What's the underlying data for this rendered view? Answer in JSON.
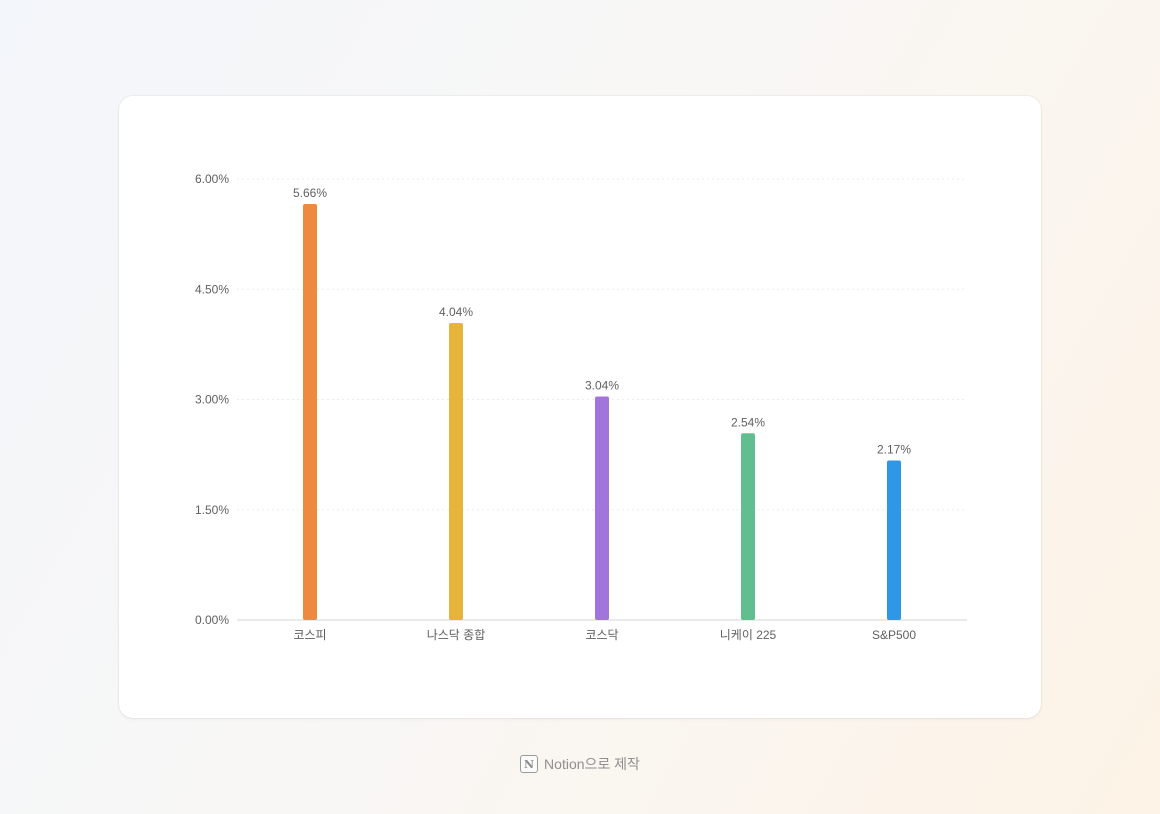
{
  "chart_data": {
    "type": "bar",
    "categories": [
      "코스피",
      "나스닥 종합",
      "코스닥",
      "니케이 225",
      "S&P500"
    ],
    "values": [
      5.66,
      4.04,
      3.04,
      2.54,
      2.17
    ],
    "value_labels": [
      "5.66%",
      "4.04%",
      "3.04%",
      "2.54%",
      "2.17%"
    ],
    "colors": [
      "#ec8a3f",
      "#e6b43a",
      "#a275dc",
      "#63be8f",
      "#2f97e6"
    ],
    "ylim": [
      0,
      6
    ],
    "yticks": [
      0,
      1.5,
      3,
      4.5,
      6
    ],
    "ytick_labels": [
      "0.00%",
      "1.50%",
      "3.00%",
      "4.50%",
      "6.00%"
    ],
    "grid": true,
    "title": "",
    "xlabel": "",
    "ylabel": ""
  },
  "footer": {
    "icon": "notion-icon",
    "text": "Notion으로 제작"
  }
}
